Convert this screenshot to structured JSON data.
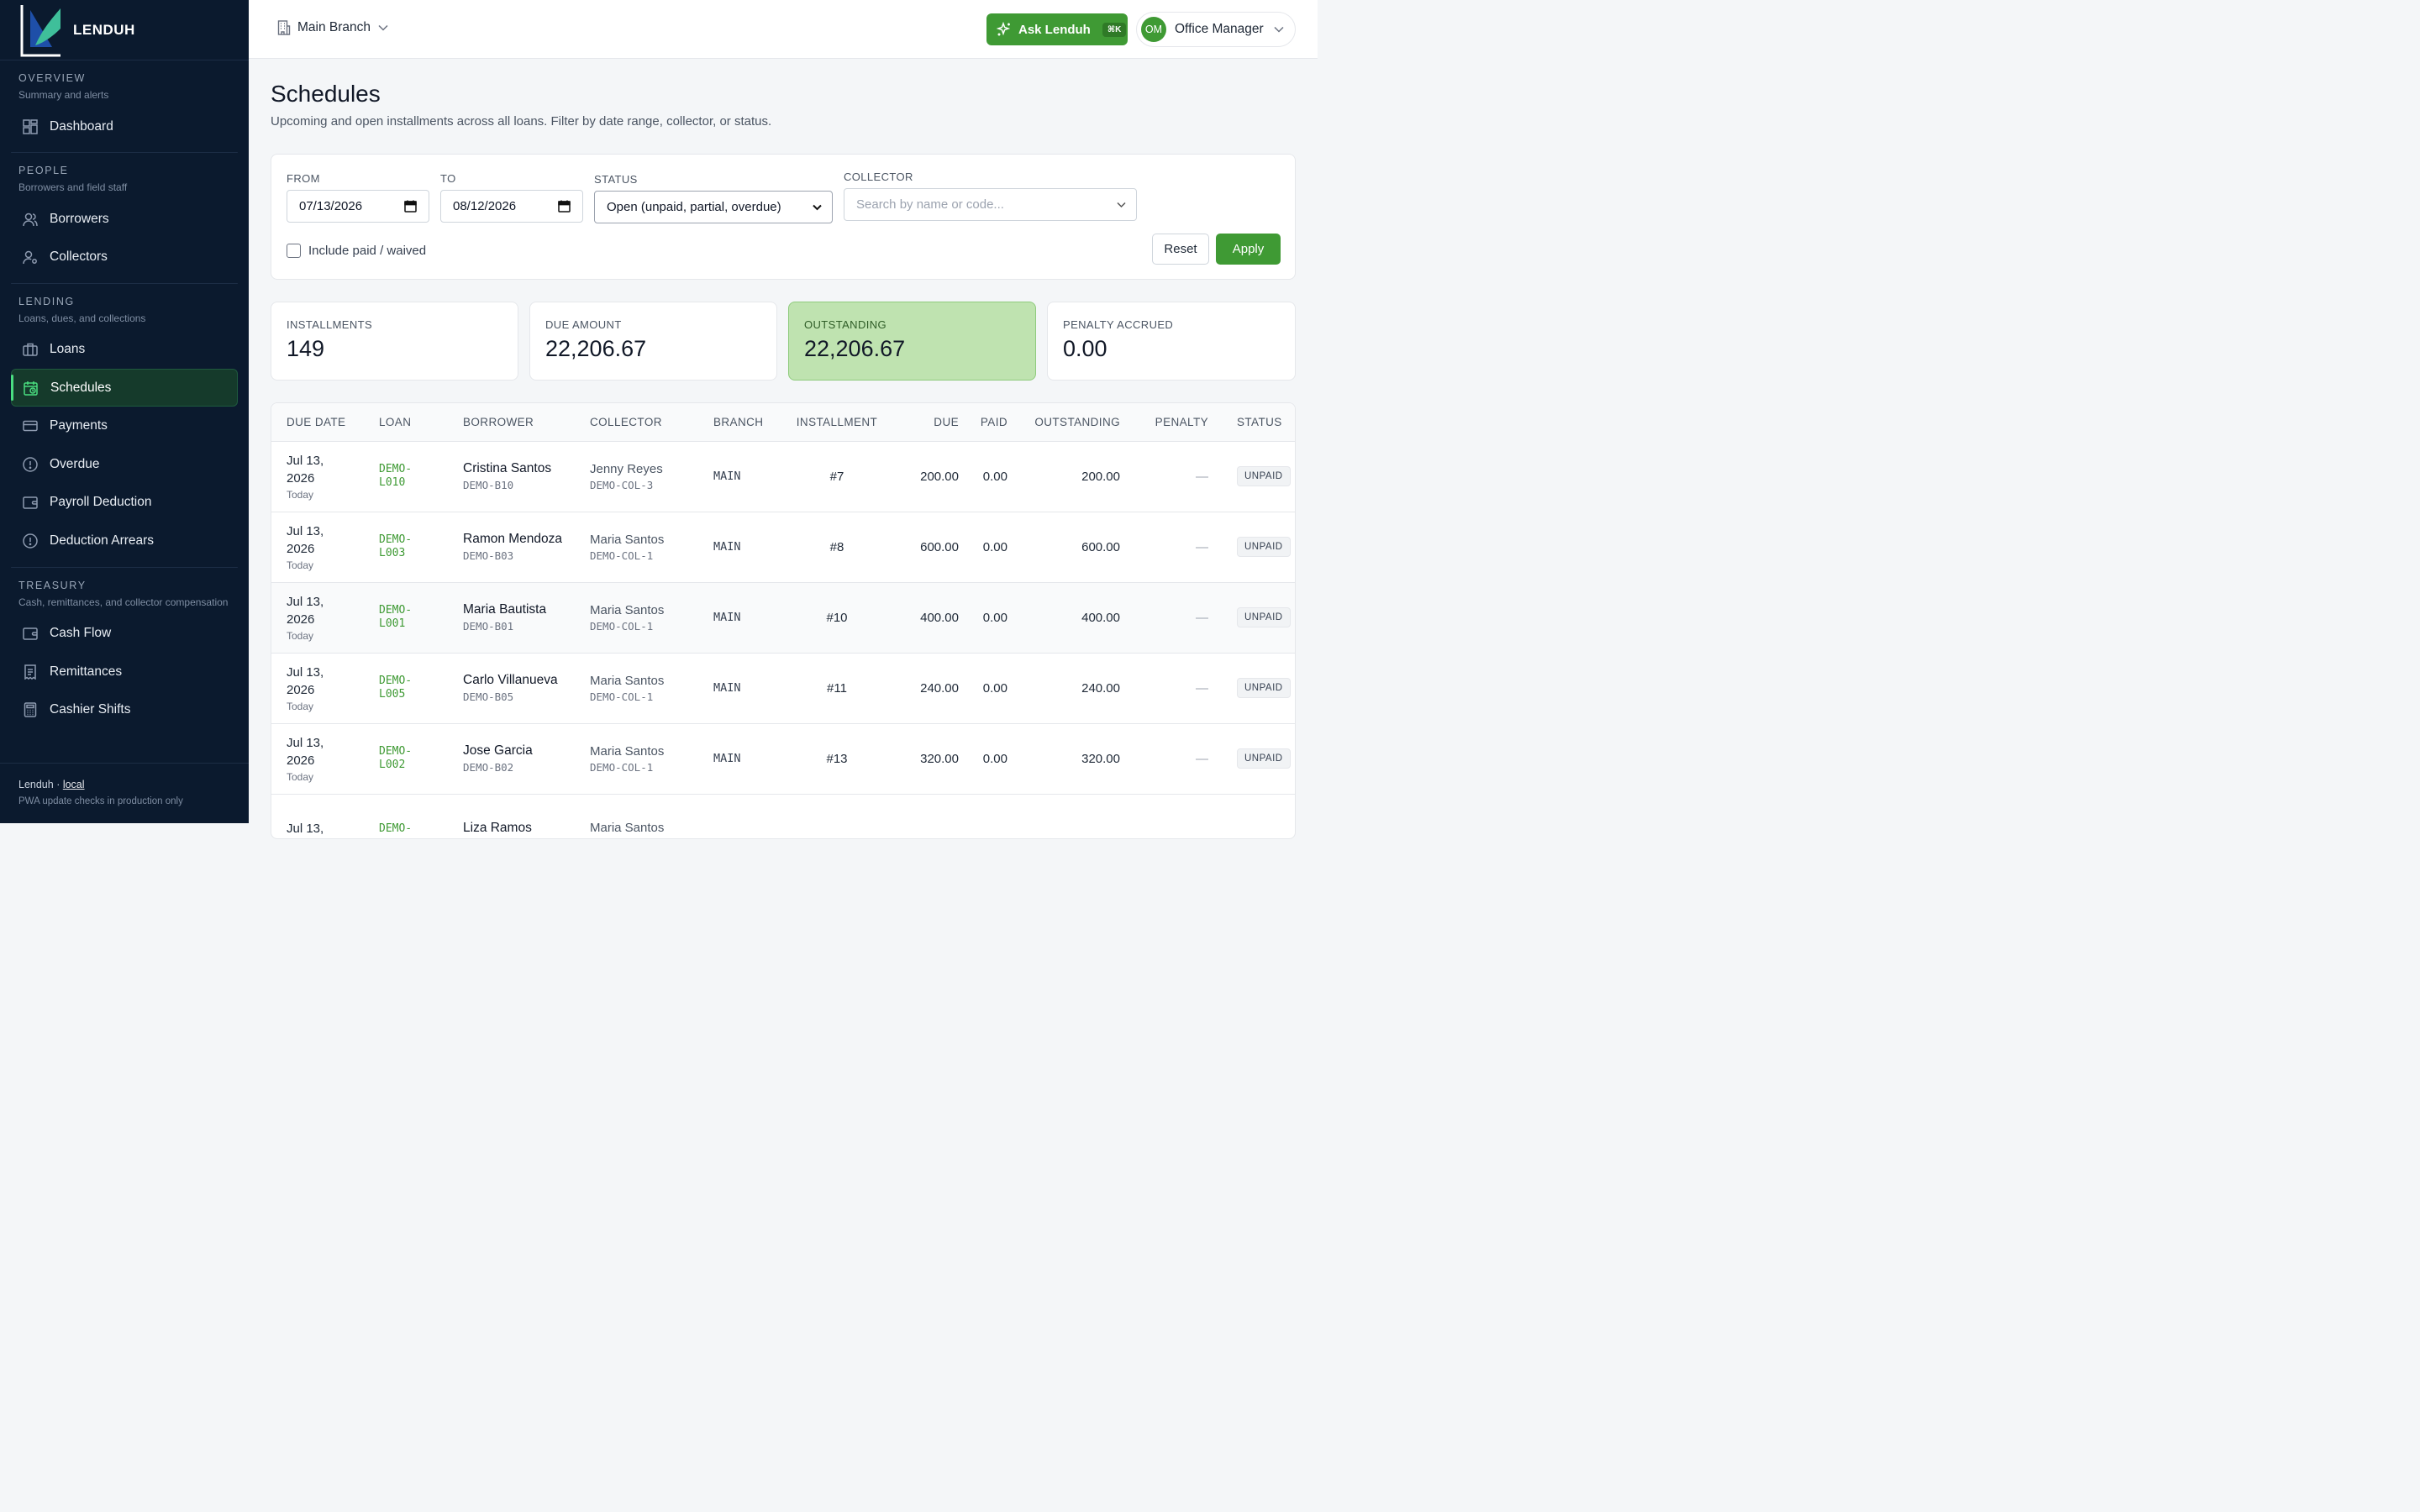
{
  "app": {
    "brand_name": "LENDUH"
  },
  "sidebar": {
    "sections": [
      {
        "title": "OVERVIEW",
        "subtitle": "Summary and alerts",
        "items": [
          {
            "label": "Dashboard",
            "icon": "dashboard-icon"
          }
        ]
      },
      {
        "title": "PEOPLE",
        "subtitle": "Borrowers and field staff",
        "items": [
          {
            "label": "Borrowers",
            "icon": "users-icon"
          },
          {
            "label": "Collectors",
            "icon": "user-cog-icon"
          }
        ]
      },
      {
        "title": "LENDING",
        "subtitle": "Loans, dues, and collections",
        "items": [
          {
            "label": "Loans",
            "icon": "briefcase-icon"
          },
          {
            "label": "Schedules",
            "icon": "calendar-clock-icon",
            "active": true
          },
          {
            "label": "Payments",
            "icon": "credit-card-icon"
          },
          {
            "label": "Overdue",
            "icon": "alert-circle-icon"
          },
          {
            "label": "Payroll Deduction",
            "icon": "wallet-icon"
          },
          {
            "label": "Deduction Arrears",
            "icon": "alert-circle-icon"
          }
        ]
      },
      {
        "title": "TREASURY",
        "subtitle": "Cash, remittances, and collector compensation",
        "items": [
          {
            "label": "Cash Flow",
            "icon": "wallet-icon"
          },
          {
            "label": "Remittances",
            "icon": "receipt-icon"
          },
          {
            "label": "Cashier Shifts",
            "icon": "calculator-icon"
          }
        ]
      }
    ],
    "footer": {
      "app": "Lenduh",
      "env": "local",
      "note": "PWA update checks in production only"
    }
  },
  "topbar": {
    "branch": "Main Branch",
    "ask_label": "Ask Lenduh",
    "ask_shortcut": "⌘K",
    "user_initials": "OM",
    "user_role": "Office Manager"
  },
  "page": {
    "title": "Schedules",
    "subtitle": "Upcoming and open installments across all loans. Filter by date range, collector, or status."
  },
  "filters": {
    "from_label": "FROM",
    "from_value": "07/13/2026",
    "to_label": "TO",
    "to_value": "08/12/2026",
    "status_label": "STATUS",
    "status_value": "Open (unpaid, partial, overdue)",
    "collector_label": "COLLECTOR",
    "collector_placeholder": "Search by name or code...",
    "include_paid_label": "Include paid / waived",
    "reset_label": "Reset",
    "apply_label": "Apply"
  },
  "stats": [
    {
      "label": "INSTALLMENTS",
      "value": "149"
    },
    {
      "label": "DUE AMOUNT",
      "value": "22,206.67"
    },
    {
      "label": "OUTSTANDING",
      "value": "22,206.67",
      "highlight": true
    },
    {
      "label": "PENALTY ACCRUED",
      "value": "0.00"
    }
  ],
  "table": {
    "headers": [
      "DUE DATE",
      "LOAN",
      "BORROWER",
      "COLLECTOR",
      "BRANCH",
      "INSTALLMENT",
      "DUE",
      "PAID",
      "OUTSTANDING",
      "PENALTY",
      "STATUS"
    ],
    "rows": [
      {
        "date_line1": "Jul 13,",
        "date_line2": "2026",
        "date_note": "Today",
        "loan_line1": "DEMO-",
        "loan_line2": "L010",
        "borrower": "Cristina Santos",
        "borrower_code": "DEMO-B10",
        "collector": "Jenny Reyes",
        "collector_code": "DEMO-COL-3",
        "branch": "MAIN",
        "installment": "#7",
        "due": "200.00",
        "paid": "0.00",
        "outstanding": "200.00",
        "penalty": "—",
        "status": "UNPAID"
      },
      {
        "date_line1": "Jul 13,",
        "date_line2": "2026",
        "date_note": "Today",
        "loan_line1": "DEMO-",
        "loan_line2": "L003",
        "borrower": "Ramon Mendoza",
        "borrower_code": "DEMO-B03",
        "collector": "Maria Santos",
        "collector_code": "DEMO-COL-1",
        "branch": "MAIN",
        "installment": "#8",
        "due": "600.00",
        "paid": "0.00",
        "outstanding": "600.00",
        "penalty": "—",
        "status": "UNPAID"
      },
      {
        "date_line1": "Jul 13,",
        "date_line2": "2026",
        "date_note": "Today",
        "loan_line1": "DEMO-",
        "loan_line2": "L001",
        "borrower": "Maria Bautista",
        "borrower_code": "DEMO-B01",
        "collector": "Maria Santos",
        "collector_code": "DEMO-COL-1",
        "branch": "MAIN",
        "installment": "#10",
        "due": "400.00",
        "paid": "0.00",
        "outstanding": "400.00",
        "penalty": "—",
        "status": "UNPAID"
      },
      {
        "date_line1": "Jul 13,",
        "date_line2": "2026",
        "date_note": "Today",
        "loan_line1": "DEMO-",
        "loan_line2": "L005",
        "borrower": "Carlo Villanueva",
        "borrower_code": "DEMO-B05",
        "collector": "Maria Santos",
        "collector_code": "DEMO-COL-1",
        "branch": "MAIN",
        "installment": "#11",
        "due": "240.00",
        "paid": "0.00",
        "outstanding": "240.00",
        "penalty": "—",
        "status": "UNPAID"
      },
      {
        "date_line1": "Jul 13,",
        "date_line2": "2026",
        "date_note": "Today",
        "loan_line1": "DEMO-",
        "loan_line2": "L002",
        "borrower": "Jose Garcia",
        "borrower_code": "DEMO-B02",
        "collector": "Maria Santos",
        "collector_code": "DEMO-COL-1",
        "branch": "MAIN",
        "installment": "#13",
        "due": "320.00",
        "paid": "0.00",
        "outstanding": "320.00",
        "penalty": "—",
        "status": "UNPAID"
      },
      {
        "date_line1": "Jul 13,",
        "date_line2": "",
        "date_note": "",
        "loan_line1": "DEMO-",
        "loan_line2": "",
        "borrower": "Liza Ramos",
        "borrower_code": "",
        "collector": "Maria Santos",
        "collector_code": "",
        "branch": "",
        "installment": "",
        "due": "",
        "paid": "",
        "outstanding": "",
        "penalty": "",
        "status": ""
      }
    ]
  }
}
